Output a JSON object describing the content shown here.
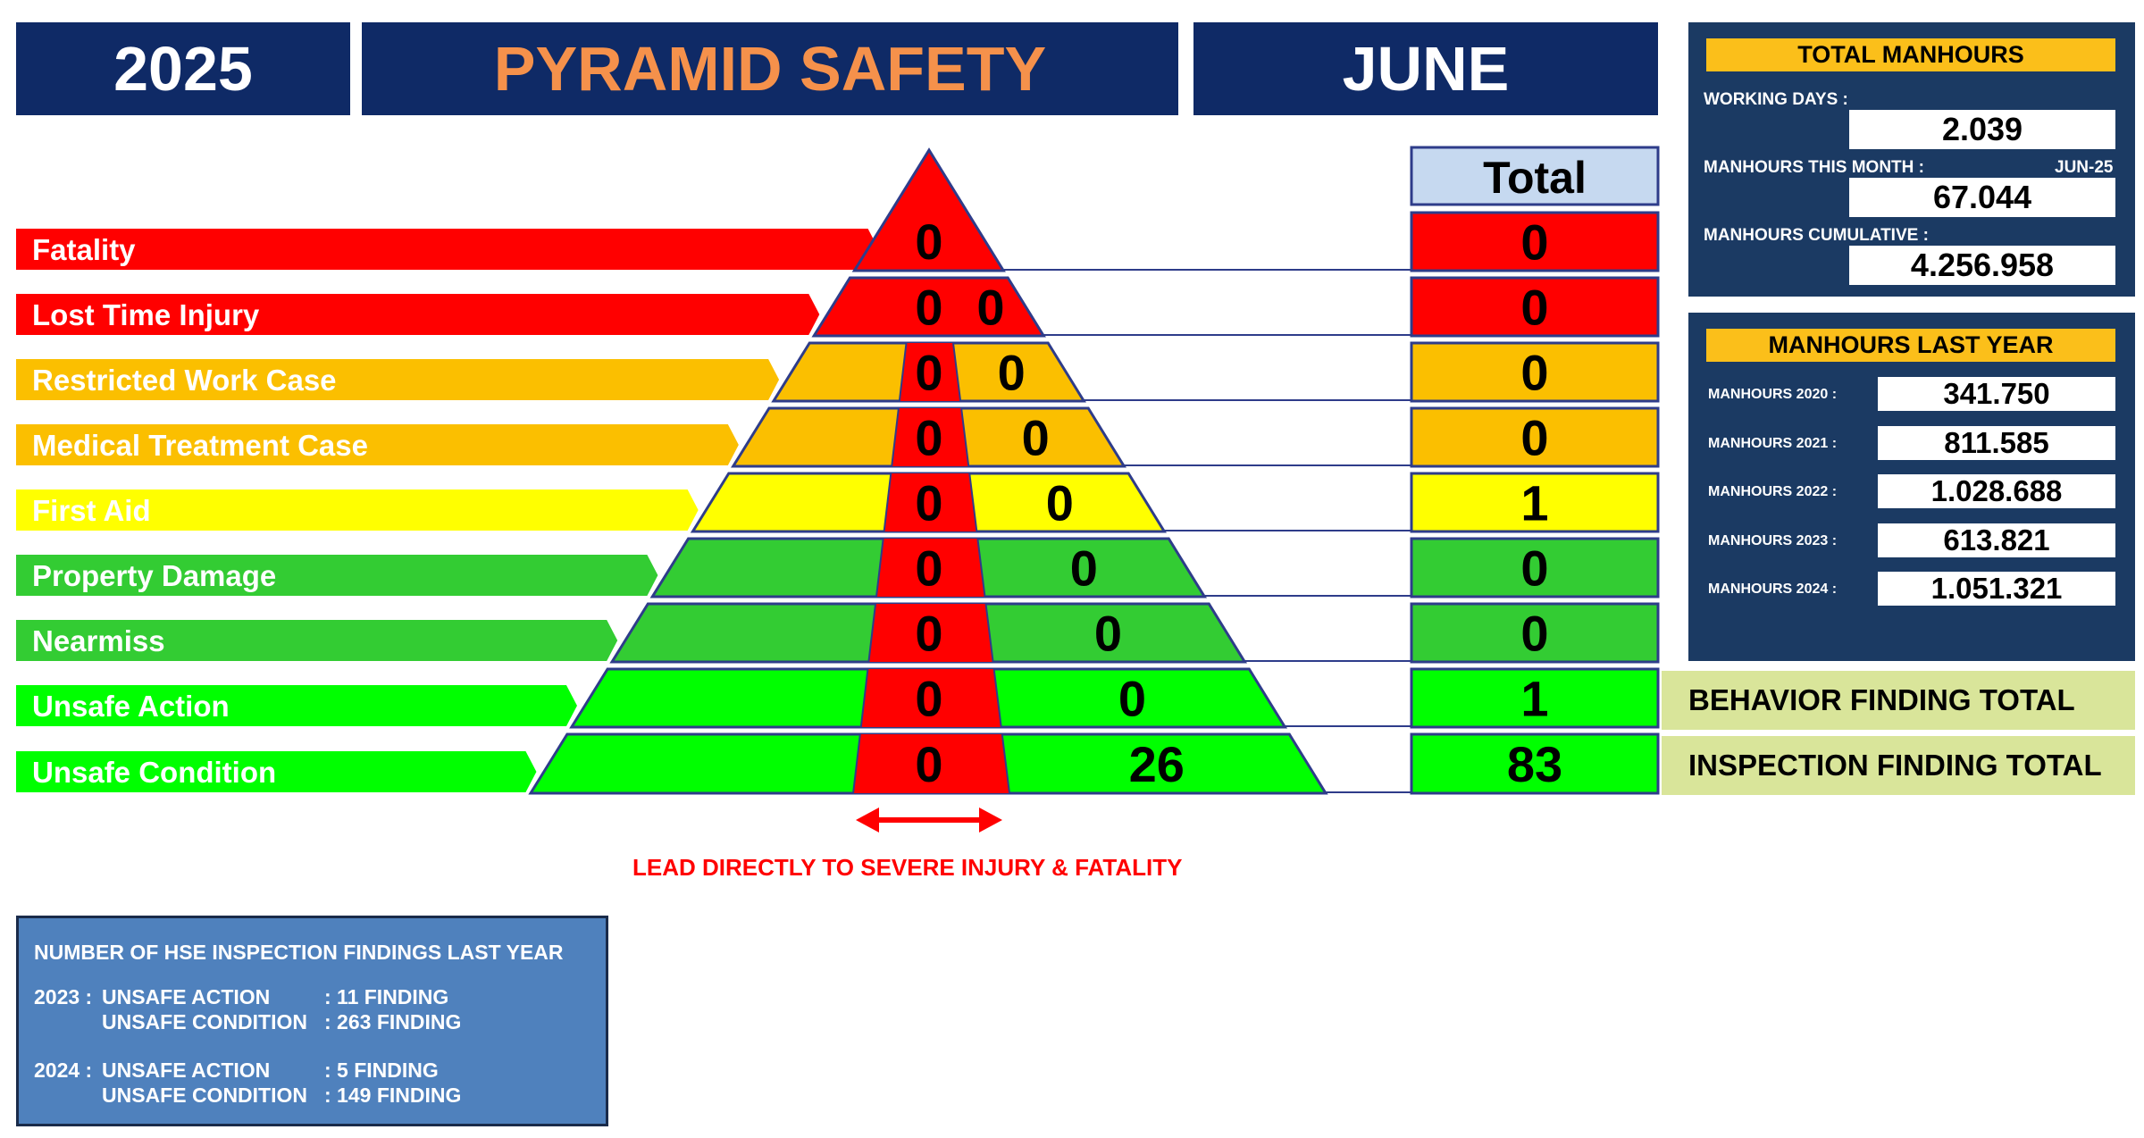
{
  "header": {
    "year": "2025",
    "title": "PYRAMID SAFETY",
    "month": "JUNE"
  },
  "total_header": "Total",
  "colors": {
    "navy": "#0f2a66",
    "red": "#ff0000",
    "orange": "#fbbf00",
    "yellow": "#ffff00",
    "green": "#33cc33",
    "bright_green": "#00ff00",
    "title_orange": "#f5914b"
  },
  "categories": [
    {
      "label": "Fatality",
      "color": "#ff0000",
      "values": [
        "0"
      ],
      "total": "0"
    },
    {
      "label": "Lost Time Injury",
      "color": "#ff0000",
      "values": [
        "0",
        "0"
      ],
      "total": "0"
    },
    {
      "label": "Restricted Work Case",
      "color": "#fbbf00",
      "values": [
        "0",
        "0"
      ],
      "total": "0"
    },
    {
      "label": "Medical Treatment Case",
      "color": "#fbbf00",
      "values": [
        "0",
        "0"
      ],
      "total": "0"
    },
    {
      "label": "First Aid",
      "color": "#ffff00",
      "values": [
        "0",
        "0"
      ],
      "total": "1"
    },
    {
      "label": "Property Damage",
      "color": "#33cc33",
      "values": [
        "0",
        "0"
      ],
      "total": "0"
    },
    {
      "label": "Nearmiss",
      "color": "#33cc33",
      "values": [
        "0",
        "0"
      ],
      "total": "0"
    },
    {
      "label": "Unsafe Action",
      "color": "#00ff00",
      "values": [
        "0",
        "0"
      ],
      "total": "1"
    },
    {
      "label": "Unsafe Condition",
      "color": "#00ff00",
      "values": [
        "0",
        "26"
      ],
      "total": "83"
    }
  ],
  "finding_totals": {
    "behavior": "BEHAVIOR FINDING TOTAL",
    "inspection": "INSPECTION FINDING TOTAL"
  },
  "note": "LEAD DIRECTLY TO SEVERE INJURY & FATALITY",
  "total_manhours": {
    "title": "TOTAL MANHOURS",
    "working_days_label": "WORKING DAYS :",
    "working_days": "2.039",
    "this_month_label": "MANHOURS THIS MONTH :",
    "this_month_period": "JUN-25",
    "this_month": "67.044",
    "cumulative_label": "MANHOURS CUMULATIVE :",
    "cumulative": "4.256.958"
  },
  "last_year": {
    "title": "MANHOURS LAST YEAR",
    "rows": [
      {
        "label": "MANHOURS 2020 :",
        "value": "341.750"
      },
      {
        "label": "MANHOURS 2021 :",
        "value": "811.585"
      },
      {
        "label": "MANHOURS 2022 :",
        "value": "1.028.688"
      },
      {
        "label": "MANHOURS 2023 :",
        "value": "613.821"
      },
      {
        "label": "MANHOURS 2024 :",
        "value": "1.051.321"
      }
    ]
  },
  "history": {
    "title": "NUMBER OF HSE INSPECTION FINDINGS LAST YEAR",
    "y2023_label": "2023 :",
    "y2023_action": "UNSAFE ACTION",
    "y2023_action_val": ": 11 FINDING",
    "y2023_cond": "UNSAFE CONDITION",
    "y2023_cond_val": ": 263 FINDING",
    "y2024_label": "2024 :",
    "y2024_action": "UNSAFE ACTION",
    "y2024_action_val": ": 5 FINDING",
    "y2024_cond": "UNSAFE CONDITION",
    "y2024_cond_val": ": 149 FINDING"
  }
}
